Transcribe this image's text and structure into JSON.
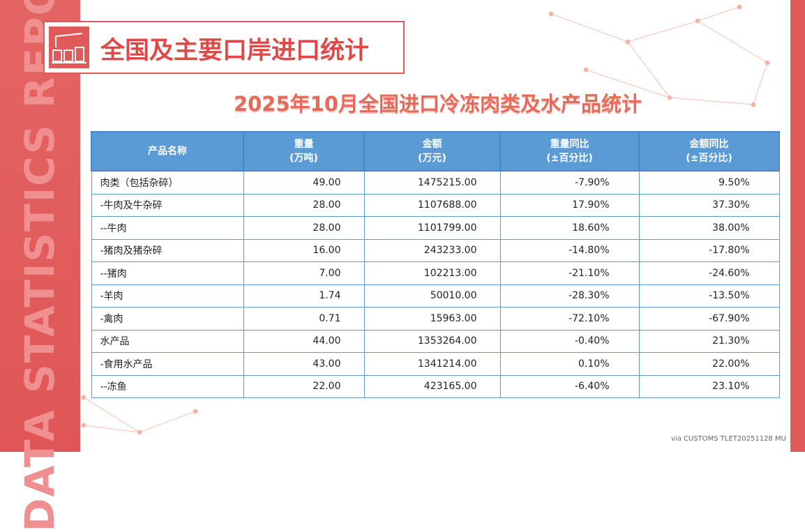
{
  "side_label": "DATA STATISTICS REPORT",
  "header": {
    "title": "全国及主要口岸进口统计"
  },
  "subtitle": "2025年10月全国进口冷冻肉类及水产品统计",
  "table": {
    "columns": [
      [
        "产品名称"
      ],
      [
        "重量",
        "(万吨)"
      ],
      [
        "金额",
        "(万元)"
      ],
      [
        "重量同比",
        "(±百分比)"
      ],
      [
        "金额同比",
        "(±百分比)"
      ]
    ],
    "rows": [
      [
        "肉类（包括杂碎）",
        "49.00",
        "1475215.00",
        "-7.90%",
        "9.50%"
      ],
      [
        "-牛肉及牛杂碎",
        "28.00",
        "1107688.00",
        "17.90%",
        "37.30%"
      ],
      [
        "--牛肉",
        "28.00",
        "1101799.00",
        "18.60%",
        "38.00%"
      ],
      [
        "-猪肉及猪杂碎",
        "16.00",
        "243233.00",
        "-14.80%",
        "-17.80%"
      ],
      [
        "--猪肉",
        "7.00",
        "102213.00",
        "-21.10%",
        "-24.60%"
      ],
      [
        "-羊肉",
        "1.74",
        "50010.00",
        "-28.30%",
        "-13.50%"
      ],
      [
        "-禽肉",
        "0.71",
        "15963.00",
        "-72.10%",
        "-67.90%"
      ],
      [
        "水产品",
        "44.00",
        "1353264.00",
        "-0.40%",
        "21.30%"
      ],
      [
        "-食用水产品",
        "43.00",
        "1341214.00",
        "0.10%",
        "22.00%"
      ],
      [
        "--冻鱼",
        "22.00",
        "423165.00",
        "-6.40%",
        "23.10%"
      ]
    ]
  },
  "footer": "via CUSTOMS TLET20251128 MU"
}
